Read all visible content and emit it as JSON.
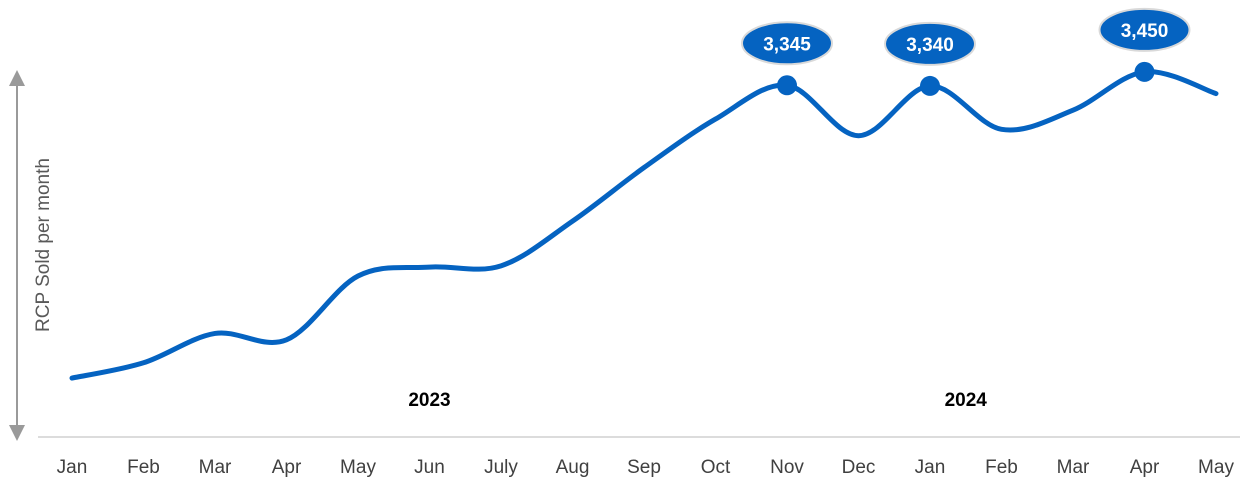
{
  "chart_data": {
    "type": "line",
    "ylabel": "RCP Sold per month",
    "xlabel": "",
    "year_labels": [
      {
        "text": "2023",
        "at_index": 5
      },
      {
        "text": "2024",
        "at_index": 12.5
      }
    ],
    "categories": [
      "Jan",
      "Feb",
      "Mar",
      "Apr",
      "May",
      "Jun",
      "July",
      "Aug",
      "Sep",
      "Oct",
      "Nov",
      "Dec",
      "Jan",
      "Feb",
      "Mar",
      "Apr",
      "May"
    ],
    "series": [
      {
        "color": "#0563C1",
        "values": [
          1050,
          1170,
          1400,
          1350,
          1850,
          1920,
          1930,
          2280,
          2700,
          3080,
          3345,
          2950,
          3340,
          3000,
          3150,
          3450,
          3280
        ]
      }
    ],
    "ylim": [
      800,
      3700
    ],
    "annotations": [
      {
        "index": 10,
        "label": "3,345"
      },
      {
        "index": 12,
        "label": "3,340"
      },
      {
        "index": 15,
        "label": "3,450"
      }
    ],
    "grid": false,
    "legend": "none"
  }
}
